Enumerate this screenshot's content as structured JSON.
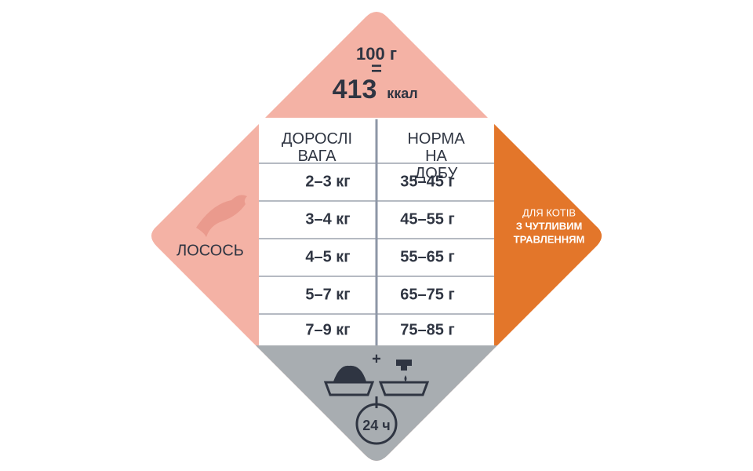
{
  "energy": {
    "amount": "100 г",
    "equals": "=",
    "kcal_value": "413",
    "kcal_unit": "ккал"
  },
  "table": {
    "header": [
      "ДОРОСЛІ ВАГА",
      "НОРМА НА ДОБУ"
    ],
    "rows": [
      [
        "2–3 кг",
        "35–45 г"
      ],
      [
        "3–4 кг",
        "45–55 г"
      ],
      [
        "4–5 кг",
        "55–65 г"
      ],
      [
        "5–7 кг",
        "65–75 г"
      ],
      [
        "7–9 кг",
        "75–85 г"
      ]
    ]
  },
  "flavor": "ЛОСОСЬ",
  "target": [
    "ДЛЯ КОТІВ",
    "З ЧУТЛИВИМ",
    "ТРАВЛЕННЯМ"
  ],
  "serving": {
    "plus": "+",
    "time": "24 ч"
  }
}
